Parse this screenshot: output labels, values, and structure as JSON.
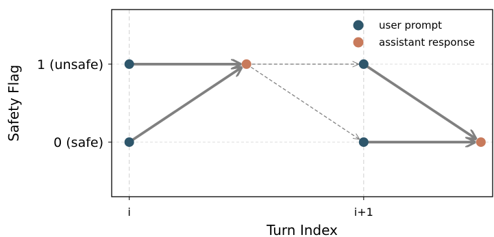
{
  "chart_data": {
    "type": "scatter",
    "title": "",
    "xlabel": "Turn Index",
    "ylabel": "Safety Flag",
    "xticks": [
      {
        "value": 0,
        "label": "i"
      },
      {
        "value": 2,
        "label": "i+1"
      }
    ],
    "yticks": [
      {
        "value": 0,
        "label": "0 (safe)"
      },
      {
        "value": 1,
        "label": "1 (unsafe)"
      }
    ],
    "xlim": [
      -0.15,
      3.1
    ],
    "ylim": [
      -0.7,
      1.7
    ],
    "grid": true,
    "legend_position": "top-right",
    "series": [
      {
        "name": "user prompt",
        "color": "#2e566b",
        "points": [
          {
            "x": 0,
            "y": 1
          },
          {
            "x": 0,
            "y": 0
          },
          {
            "x": 2,
            "y": 1
          },
          {
            "x": 2,
            "y": 0
          }
        ]
      },
      {
        "name": "assistant response",
        "color": "#c87a5b",
        "points": [
          {
            "x": 1,
            "y": 1
          },
          {
            "x": 3,
            "y": 0
          }
        ]
      }
    ],
    "transitions_solid": [
      {
        "from": [
          0,
          1
        ],
        "to": [
          1,
          1
        ]
      },
      {
        "from": [
          0,
          0
        ],
        "to": [
          1,
          1
        ]
      },
      {
        "from": [
          2,
          1
        ],
        "to": [
          3,
          0
        ]
      },
      {
        "from": [
          2,
          0
        ],
        "to": [
          3,
          0
        ]
      }
    ],
    "transitions_dashed": [
      {
        "from": [
          1,
          1
        ],
        "to": [
          2,
          1
        ]
      },
      {
        "from": [
          1,
          1
        ],
        "to": [
          2,
          0
        ]
      }
    ],
    "arrow_color": "#808080"
  }
}
